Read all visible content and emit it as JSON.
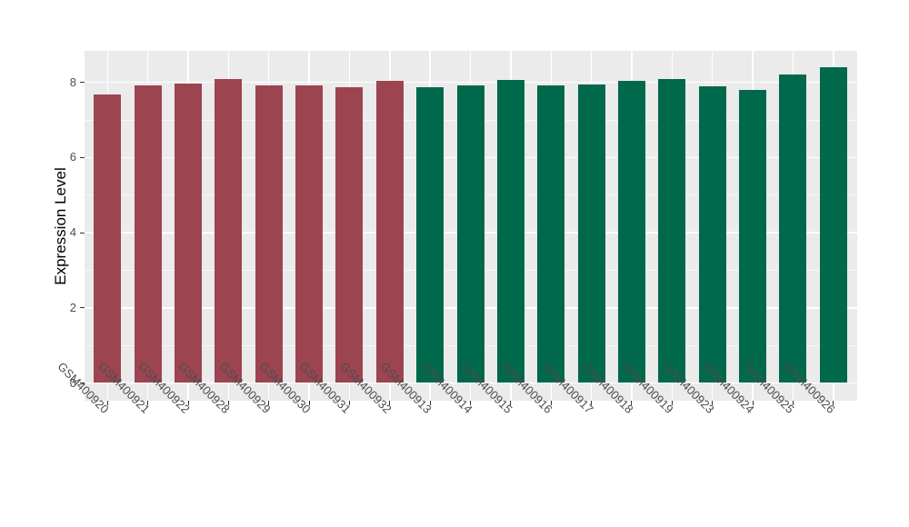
{
  "chart_data": {
    "type": "bar",
    "title": "",
    "xlabel": "",
    "ylabel": "Expression Level",
    "categories": [
      "GSM400920",
      "GSM400921",
      "GSM400922",
      "GSM400928",
      "GSM400929",
      "GSM400930",
      "GSM400931",
      "GSM400932",
      "GSM400913",
      "GSM400914",
      "GSM400915",
      "GSM400916",
      "GSM400917",
      "GSM400918",
      "GSM400919",
      "GSM400923",
      "GSM400924",
      "GSM400925",
      "GSM400926"
    ],
    "values": [
      7.69,
      7.92,
      7.98,
      8.09,
      7.91,
      7.92,
      7.86,
      8.04,
      7.87,
      7.93,
      8.06,
      7.93,
      7.95,
      8.05,
      8.1,
      7.9,
      7.79,
      8.2,
      8.4
    ],
    "bar_group_index": [
      0,
      0,
      0,
      0,
      0,
      0,
      0,
      0,
      1,
      1,
      1,
      1,
      1,
      1,
      1,
      1,
      1,
      1,
      1
    ],
    "group_colors": [
      "#9C4450",
      "#00684B"
    ],
    "ylim": [
      0,
      8.84
    ],
    "yticks": [
      0,
      2,
      4,
      6,
      8
    ],
    "yticks_minor": [
      1,
      3,
      5,
      7
    ],
    "x_label_rotation_deg": 45,
    "grid": "on",
    "legend": "none",
    "panel_background": "#EBEBEB",
    "gridline_color": "#FFFFFF",
    "axis_text_color": "#4D4D4D"
  }
}
